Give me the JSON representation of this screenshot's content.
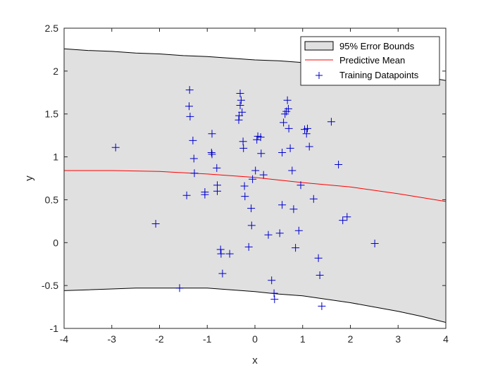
{
  "chart_data": {
    "type": "line",
    "xlabel": "x",
    "ylabel": "y",
    "xlim": [
      -4,
      4
    ],
    "ylim": [
      -1,
      2.5
    ],
    "xticks": [
      -4,
      -3,
      -2,
      -1,
      0,
      1,
      2,
      3,
      4
    ],
    "yticks": [
      -1,
      -0.5,
      0,
      0.5,
      1,
      1.5,
      2,
      2.5
    ],
    "grid": false,
    "legend_position": "top-right",
    "colors": {
      "band_fill": "#e0e0e0",
      "band_edge": "#000000",
      "mean_line": "#ff0000",
      "points": "#0000cc",
      "axes": "#262626"
    },
    "series": [
      {
        "name": "95% Error Bounds",
        "kind": "band",
        "x": [
          -4,
          -3.5,
          -3,
          -2.5,
          -2,
          -1.5,
          -1,
          -0.5,
          0,
          0.5,
          1,
          1.5,
          2,
          2.5,
          3,
          3.5,
          4
        ],
        "upper": [
          2.26,
          2.24,
          2.23,
          2.21,
          2.2,
          2.18,
          2.17,
          2.15,
          2.13,
          2.12,
          2.1,
          2.07,
          2.05,
          2.02,
          1.98,
          1.94,
          1.89
        ],
        "lower": [
          -0.56,
          -0.55,
          -0.54,
          -0.53,
          -0.53,
          -0.53,
          -0.53,
          -0.55,
          -0.57,
          -0.6,
          -0.62,
          -0.66,
          -0.7,
          -0.75,
          -0.8,
          -0.86,
          -0.93
        ]
      },
      {
        "name": "Predictive Mean",
        "kind": "line",
        "x": [
          -4,
          -3,
          -2,
          -1,
          0,
          1,
          2,
          3,
          4
        ],
        "values": [
          0.84,
          0.84,
          0.83,
          0.8,
          0.76,
          0.7,
          0.65,
          0.57,
          0.48
        ]
      },
      {
        "name": "Training Datapoints",
        "kind": "scatter",
        "points": [
          [
            -2.92,
            1.11
          ],
          [
            -2.08,
            0.22
          ],
          [
            -1.58,
            -0.53
          ],
          [
            -1.43,
            0.55
          ],
          [
            -1.37,
            1.78
          ],
          [
            -1.38,
            1.59
          ],
          [
            -1.36,
            1.47
          ],
          [
            -1.3,
            1.19
          ],
          [
            -1.28,
            0.98
          ],
          [
            -1.27,
            0.81
          ],
          [
            -1.05,
            0.59
          ],
          [
            -1.05,
            0.56
          ],
          [
            -0.91,
            1.05
          ],
          [
            -0.9,
            1.27
          ],
          [
            -0.9,
            1.03
          ],
          [
            -0.8,
            0.87
          ],
          [
            -0.79,
            0.67
          ],
          [
            -0.79,
            0.6
          ],
          [
            -0.72,
            -0.08
          ],
          [
            -0.71,
            -0.13
          ],
          [
            -0.68,
            -0.36
          ],
          [
            -0.53,
            -0.13
          ],
          [
            -0.34,
            1.43
          ],
          [
            -0.33,
            1.48
          ],
          [
            -0.31,
            1.74
          ],
          [
            -0.31,
            1.6
          ],
          [
            -0.29,
            1.66
          ],
          [
            -0.27,
            1.52
          ],
          [
            -0.25,
            1.18
          ],
          [
            -0.24,
            1.1
          ],
          [
            -0.22,
            0.66
          ],
          [
            -0.21,
            0.54
          ],
          [
            -0.13,
            -0.05
          ],
          [
            -0.08,
            0.4
          ],
          [
            -0.07,
            0.2
          ],
          [
            -0.05,
            0.74
          ],
          [
            0.01,
            0.84
          ],
          [
            0.04,
            1.2
          ],
          [
            0.06,
            1.24
          ],
          [
            0.12,
            1.23
          ],
          [
            0.13,
            1.04
          ],
          [
            0.18,
            0.79
          ],
          [
            0.28,
            0.09
          ],
          [
            0.35,
            -0.44
          ],
          [
            0.4,
            -0.59
          ],
          [
            0.41,
            -0.66
          ],
          [
            0.52,
            0.11
          ],
          [
            0.57,
            1.05
          ],
          [
            0.57,
            0.44
          ],
          [
            0.6,
            1.4
          ],
          [
            0.63,
            1.5
          ],
          [
            0.66,
            1.53
          ],
          [
            0.68,
            1.66
          ],
          [
            0.7,
            1.56
          ],
          [
            0.71,
            1.33
          ],
          [
            0.74,
            1.1
          ],
          [
            0.78,
            0.84
          ],
          [
            0.81,
            0.39
          ],
          [
            0.85,
            -0.06
          ],
          [
            0.92,
            0.14
          ],
          [
            0.96,
            0.67
          ],
          [
            1.04,
            1.32
          ],
          [
            1.08,
            1.27
          ],
          [
            1.1,
            1.33
          ],
          [
            1.14,
            1.12
          ],
          [
            1.23,
            0.51
          ],
          [
            1.33,
            -0.18
          ],
          [
            1.36,
            -0.38
          ],
          [
            1.4,
            -0.74
          ],
          [
            1.6,
            1.41
          ],
          [
            1.75,
            0.91
          ],
          [
            1.84,
            0.26
          ],
          [
            1.93,
            0.3
          ],
          [
            2.51,
            -0.01
          ]
        ]
      }
    ]
  }
}
